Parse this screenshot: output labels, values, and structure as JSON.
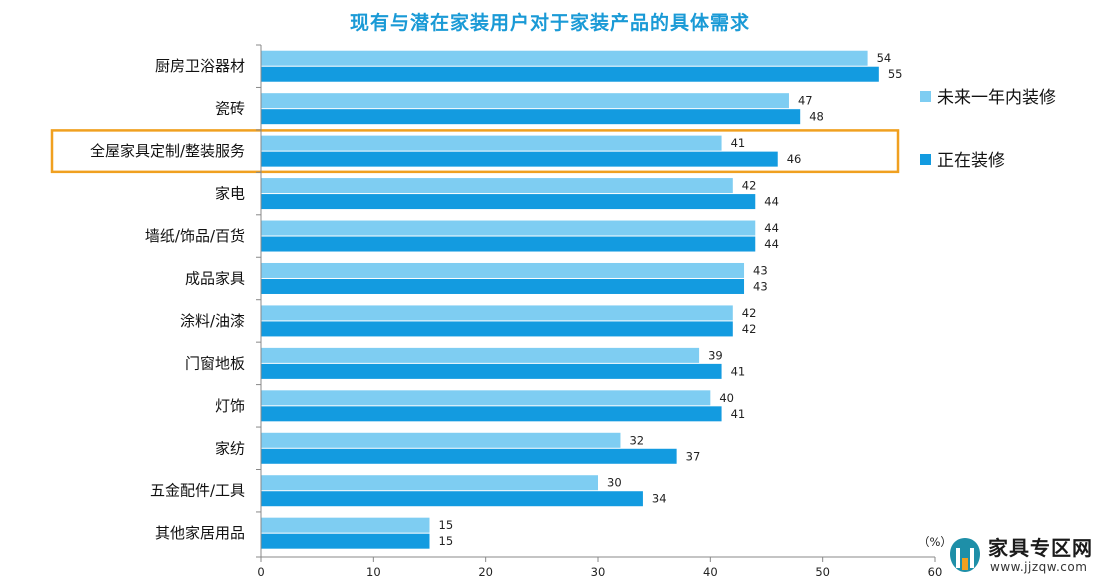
{
  "chart_data": {
    "type": "bar",
    "orientation": "horizontal",
    "title": "现有与潜在家装用户对于家装产品的具体需求",
    "categories": [
      "厨房卫浴器材",
      "瓷砖",
      "全屋家具定制/整装服务",
      "家电",
      "墙纸/饰品/百货",
      "成品家具",
      "涂料/油漆",
      "门窗地板",
      "灯饰",
      "家纺",
      "五金配件/工具",
      "其他家居用品"
    ],
    "series": [
      {
        "name": "未来一年内装修",
        "color": "#7ecdf2",
        "values": [
          54,
          47,
          41,
          42,
          44,
          43,
          42,
          39,
          40,
          32,
          30,
          15
        ]
      },
      {
        "name": "正在装修",
        "color": "#139be0",
        "values": [
          55,
          48,
          46,
          44,
          44,
          43,
          42,
          41,
          41,
          37,
          34,
          15
        ]
      }
    ],
    "xlim": [
      0,
      60
    ],
    "xticks": [
      "0",
      "10",
      "20",
      "30",
      "40",
      "50",
      "60"
    ],
    "unit_label": "（%）",
    "highlighted_category": "全屋家具定制/整装服务",
    "highlight_color": "#f0a020",
    "legend_position": "right",
    "grid": false
  },
  "watermark": {
    "name": "家具专区网",
    "url": "www.jjzqw.com"
  }
}
